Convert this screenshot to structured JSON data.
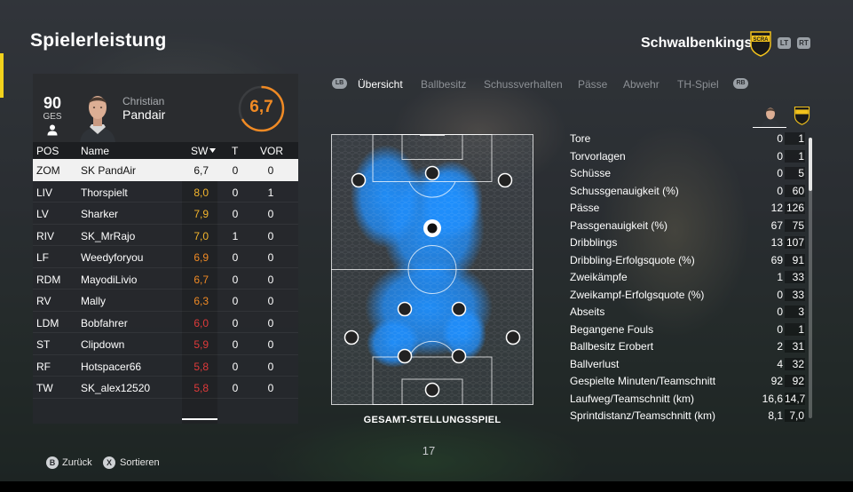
{
  "header": {
    "title": "Spielerleistung",
    "team_name": "Schwalbenkings",
    "crest_text": "SCRA",
    "lt_label": "LT",
    "rt_label": "RT"
  },
  "player": {
    "overall": "90",
    "overall_label": "GES",
    "first_name": "Christian",
    "last_name": "Pandair",
    "match_rating": "6,7",
    "match_rating_fraction": 0.67
  },
  "table": {
    "headers": {
      "pos": "POS",
      "name": "Name",
      "sw": "SW",
      "t": "T",
      "vor": "VOR"
    },
    "rows": [
      {
        "pos": "ZOM",
        "name": "SK PandAir",
        "sw": "6,7",
        "t": "0",
        "vor": "0",
        "color": "#111111",
        "selected": true
      },
      {
        "pos": "LIV",
        "name": "Thorspielt",
        "sw": "8,0",
        "t": "0",
        "vor": "1",
        "color": "#f4b52c"
      },
      {
        "pos": "LV",
        "name": "Sharker",
        "sw": "7,9",
        "t": "0",
        "vor": "0",
        "color": "#f4b52c"
      },
      {
        "pos": "RIV",
        "name": "SK_MrRajo",
        "sw": "7,0",
        "t": "1",
        "vor": "0",
        "color": "#f4b52c"
      },
      {
        "pos": "LF",
        "name": "Weedyforyou",
        "sw": "6,9",
        "t": "0",
        "vor": "0",
        "color": "#f08a24"
      },
      {
        "pos": "RDM",
        "name": "MayodiLivio",
        "sw": "6,7",
        "t": "0",
        "vor": "0",
        "color": "#f08a24"
      },
      {
        "pos": "RV",
        "name": "Mally",
        "sw": "6,3",
        "t": "0",
        "vor": "0",
        "color": "#f08a24"
      },
      {
        "pos": "LDM",
        "name": "Bobfahrer",
        "sw": "6,0",
        "t": "0",
        "vor": "0",
        "color": "#e03a3a"
      },
      {
        "pos": "ST",
        "name": "Clipdown",
        "sw": "5,9",
        "t": "0",
        "vor": "0",
        "color": "#e03a3a"
      },
      {
        "pos": "RF",
        "name": "Hotspacer66",
        "sw": "5,8",
        "t": "0",
        "vor": "0",
        "color": "#e03a3a"
      },
      {
        "pos": "TW",
        "name": "SK_alex12520",
        "sw": "5,8",
        "t": "0",
        "vor": "0",
        "color": "#e03a3a"
      }
    ]
  },
  "tabs": {
    "lb": "LB",
    "rb": "RB",
    "items": [
      "Übersicht",
      "Ballbesitz",
      "Schussverhalten",
      "Pässe",
      "Abwehr",
      "TH-Spiel"
    ],
    "active": 0
  },
  "pitch": {
    "caption": "GESAMT-STELLUNGSSPIEL"
  },
  "stats": {
    "rows": [
      {
        "label": "Tore",
        "player": "0",
        "team": "1"
      },
      {
        "label": "Torvorlagen",
        "player": "0",
        "team": "1"
      },
      {
        "label": "Schüsse",
        "player": "0",
        "team": "5"
      },
      {
        "label": "Schussgenauigkeit (%)",
        "player": "0",
        "team": "60"
      },
      {
        "label": "Pässe",
        "player": "12",
        "team": "126"
      },
      {
        "label": "Passgenauigkeit (%)",
        "player": "67",
        "team": "75"
      },
      {
        "label": "Dribblings",
        "player": "13",
        "team": "107"
      },
      {
        "label": "Dribbling-Erfolgsquote (%)",
        "player": "69",
        "team": "91"
      },
      {
        "label": "Zweikämpfe",
        "player": "1",
        "team": "33"
      },
      {
        "label": "Zweikampf-Erfolgsquote (%)",
        "player": "0",
        "team": "33"
      },
      {
        "label": "Abseits",
        "player": "0",
        "team": "3"
      },
      {
        "label": "Begangene Fouls",
        "player": "0",
        "team": "1"
      },
      {
        "label": "Ballbesitz Erobert",
        "player": "2",
        "team": "31"
      },
      {
        "label": "Ballverlust",
        "player": "4",
        "team": "32"
      },
      {
        "label": "Gespielte Minuten/Teamschnitt",
        "player": "92",
        "team": "92"
      },
      {
        "label": "Laufweg/Teamschnitt (km)",
        "player": "16,6",
        "team": "14,7"
      },
      {
        "label": "Sprintdistanz/Teamschnitt (km)",
        "player": "8,1",
        "team": "7,0"
      }
    ]
  },
  "page_number": "17",
  "footer": {
    "back_key": "B",
    "back_label": "Zurück",
    "sort_key": "X",
    "sort_label": "Sortieren"
  }
}
